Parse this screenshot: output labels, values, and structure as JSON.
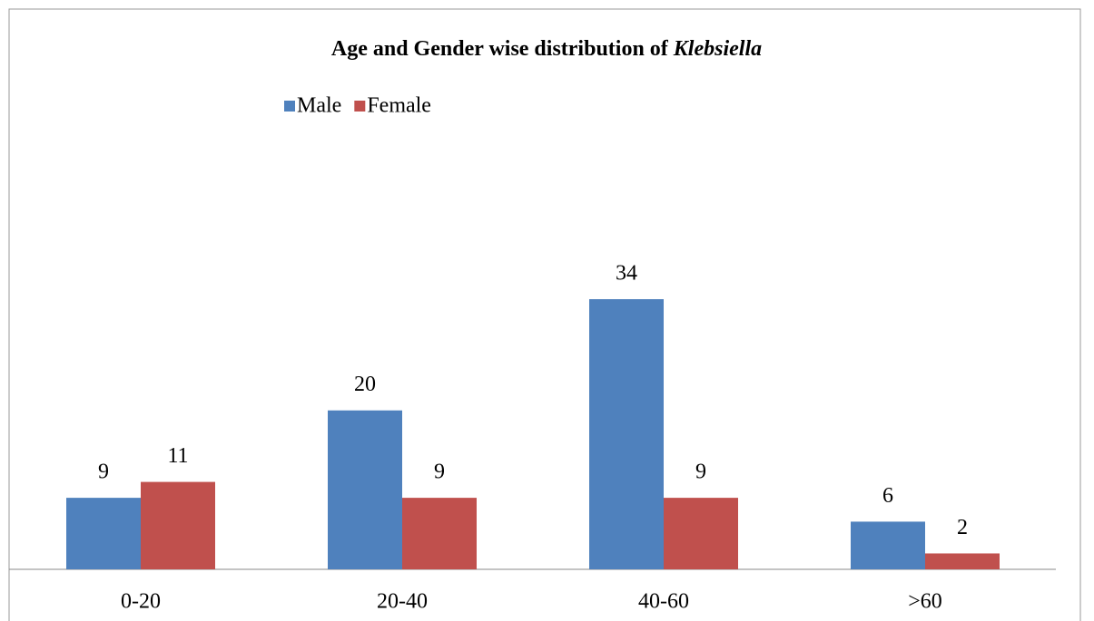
{
  "chart_data": {
    "type": "bar",
    "title": "Age and Gender wise distribution of",
    "title_italic": "Klebsiella",
    "categories": [
      "0-20",
      "20-40",
      "40-60",
      ">60"
    ],
    "series": [
      {
        "name": "Male",
        "color": "#4f81bd",
        "values": [
          9,
          20,
          34,
          6
        ]
      },
      {
        "name": "Female",
        "color": "#c0504d",
        "values": [
          11,
          9,
          9,
          2
        ]
      }
    ],
    "ylim": [
      0,
      40
    ],
    "legend": "top"
  }
}
